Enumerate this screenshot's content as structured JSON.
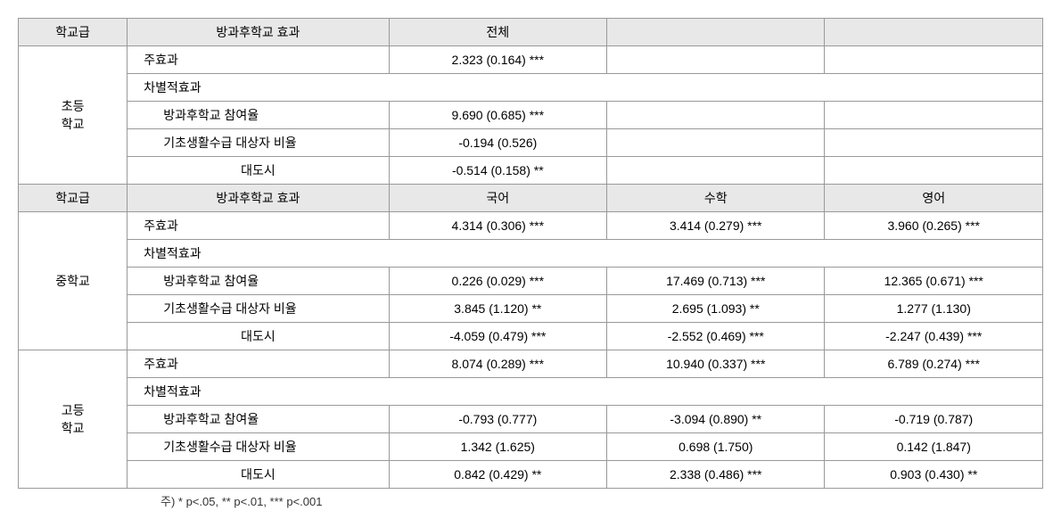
{
  "headers1": {
    "level": "학교급",
    "effect": "방과후학교 효과",
    "col1": "전체",
    "col2": "",
    "col3": ""
  },
  "headers2": {
    "level": "학교급",
    "effect": "방과후학교 효과",
    "col1": "국어",
    "col2": "수학",
    "col3": "영어"
  },
  "labels": {
    "main_effect": "주효과",
    "differential_effect": "차별적효과",
    "participation_rate": "방과후학교 참여율",
    "basic_livelihood": "기초생활수급 대상자 비율",
    "big_city": "대도시"
  },
  "schools": {
    "elementary": "초등\n학교",
    "middle": "중학교",
    "high": "고등\n학교"
  },
  "elementary": {
    "main": {
      "c1": "2.323 (0.164) ***",
      "c2": "",
      "c3": ""
    },
    "part": {
      "c1": "9.690 (0.685) ***",
      "c2": "",
      "c3": ""
    },
    "basic": {
      "c1": "-0.194 (0.526)",
      "c2": "",
      "c3": ""
    },
    "city": {
      "c1": "-0.514 (0.158) **",
      "c2": "",
      "c3": ""
    }
  },
  "middle": {
    "main": {
      "c1": "4.314 (0.306) ***",
      "c2": "3.414 (0.279) ***",
      "c3": "3.960 (0.265) ***"
    },
    "part": {
      "c1": "0.226 (0.029) ***",
      "c2": "17.469 (0.713) ***",
      "c3": "12.365 (0.671) ***"
    },
    "basic": {
      "c1": "3.845 (1.120) **",
      "c2": "2.695 (1.093) **",
      "c3": "1.277 (1.130)"
    },
    "city": {
      "c1": "-4.059 (0.479) ***",
      "c2": "-2.552 (0.469) ***",
      "c3": "-2.247 (0.439) ***"
    }
  },
  "high": {
    "main": {
      "c1": "8.074 (0.289) ***",
      "c2": "10.940 (0.337) ***",
      "c3": "6.789 (0.274) ***"
    },
    "part": {
      "c1": "-0.793 (0.777)",
      "c2": "-3.094 (0.890) **",
      "c3": "-0.719 (0.787)"
    },
    "basic": {
      "c1": "1.342 (1.625)",
      "c2": "0.698 (1.750)",
      "c3": "0.142 (1.847)"
    },
    "city": {
      "c1": "0.842 (0.429) **",
      "c2": "2.338 (0.486) ***",
      "c3": "0.903 (0.430) **"
    }
  },
  "footnote": "주) * p<.05, ** p<.01, *** p<.001"
}
